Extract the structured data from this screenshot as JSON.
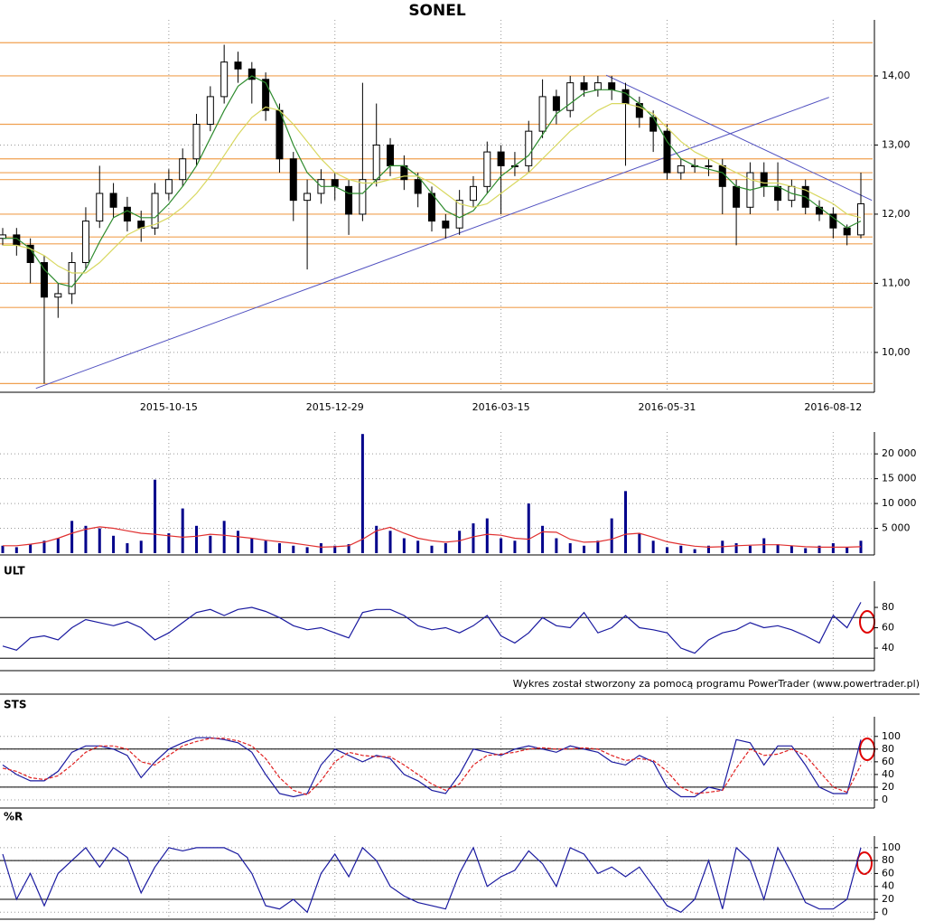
{
  "chart_data": [
    {
      "type": "candlestick",
      "title": "SONEL",
      "categories": [
        null,
        null,
        null,
        null,
        null,
        null,
        null,
        null,
        null,
        null,
        null,
        null,
        "2015-10-15",
        null,
        null,
        null,
        null,
        null,
        null,
        null,
        null,
        null,
        null,
        null,
        "2015-12-29",
        null,
        null,
        null,
        null,
        null,
        null,
        null,
        null,
        null,
        null,
        null,
        "2016-03-15",
        null,
        null,
        null,
        null,
        null,
        null,
        null,
        null,
        null,
        null,
        null,
        "2016-05-31",
        null,
        null,
        null,
        null,
        null,
        null,
        null,
        null,
        null,
        null,
        null,
        "2016-08-12",
        null,
        null
      ],
      "open": [
        11.65,
        11.7,
        11.55,
        11.3,
        10.8,
        10.85,
        11.3,
        11.9,
        12.3,
        12.1,
        11.9,
        11.8,
        12.3,
        12.5,
        12.8,
        13.3,
        13.7,
        14.2,
        14.1,
        13.95,
        13.5,
        12.8,
        12.2,
        12.3,
        12.5,
        12.4,
        12.0,
        12.5,
        13.0,
        12.7,
        12.5,
        12.3,
        11.9,
        11.8,
        12.2,
        12.4,
        12.9,
        12.7,
        12.7,
        13.2,
        13.7,
        13.5,
        13.9,
        13.8,
        13.9,
        13.8,
        13.6,
        13.4,
        13.2,
        12.6,
        12.7,
        12.7,
        12.7,
        12.4,
        12.1,
        12.6,
        12.4,
        12.2,
        12.4,
        12.1,
        12.0,
        11.8,
        11.7
      ],
      "high": [
        11.8,
        11.8,
        11.65,
        11.4,
        11.0,
        11.45,
        12.1,
        12.7,
        12.45,
        12.25,
        12.05,
        12.45,
        12.65,
        12.95,
        13.45,
        13.85,
        14.45,
        14.35,
        14.2,
        14.05,
        13.6,
        12.9,
        12.5,
        12.65,
        12.6,
        12.5,
        13.9,
        13.6,
        13.1,
        12.85,
        12.6,
        12.4,
        12.0,
        12.35,
        12.55,
        13.05,
        13.0,
        12.9,
        13.35,
        13.95,
        13.8,
        14.0,
        14.0,
        14.0,
        14.0,
        13.9,
        13.7,
        13.5,
        13.3,
        12.8,
        12.8,
        12.8,
        12.8,
        12.5,
        12.75,
        12.75,
        12.75,
        12.5,
        12.5,
        12.2,
        12.1,
        11.85,
        12.6
      ],
      "low": [
        11.55,
        11.4,
        11.0,
        9.55,
        10.5,
        10.7,
        11.2,
        11.8,
        11.95,
        11.75,
        11.6,
        11.7,
        12.2,
        12.4,
        12.7,
        13.2,
        13.6,
        13.9,
        13.6,
        13.35,
        12.6,
        11.9,
        11.2,
        12.15,
        12.2,
        11.7,
        11.9,
        12.4,
        12.55,
        12.35,
        12.1,
        11.75,
        11.65,
        11.7,
        12.1,
        12.3,
        12.0,
        12.55,
        12.6,
        13.1,
        13.3,
        13.4,
        13.7,
        13.7,
        13.65,
        12.7,
        13.25,
        12.9,
        12.5,
        12.5,
        12.6,
        12.55,
        12.0,
        11.55,
        12.0,
        12.25,
        12.05,
        12.1,
        12.0,
        11.9,
        11.65,
        11.55,
        11.65
      ],
      "close": [
        11.7,
        11.55,
        11.3,
        10.8,
        10.85,
        11.3,
        11.9,
        12.3,
        12.1,
        11.9,
        11.8,
        12.3,
        12.5,
        12.8,
        13.3,
        13.7,
        14.2,
        14.1,
        13.95,
        13.5,
        12.8,
        12.2,
        12.3,
        12.5,
        12.4,
        12.0,
        12.5,
        13.0,
        12.7,
        12.5,
        12.3,
        11.9,
        11.8,
        12.2,
        12.4,
        12.9,
        12.7,
        12.7,
        13.2,
        13.7,
        13.5,
        13.9,
        13.8,
        13.9,
        13.8,
        13.6,
        13.4,
        13.2,
        12.6,
        12.7,
        12.7,
        12.7,
        12.4,
        12.1,
        12.6,
        12.4,
        12.2,
        12.4,
        12.1,
        12.0,
        11.8,
        11.7,
        12.15
      ],
      "overlays": [
        {
          "color": "#2e8b2e",
          "values": [
            11.65,
            11.65,
            11.5,
            11.2,
            11.0,
            10.95,
            11.2,
            11.6,
            11.95,
            12.05,
            11.95,
            11.95,
            12.15,
            12.4,
            12.7,
            13.1,
            13.5,
            13.85,
            14.0,
            13.9,
            13.5,
            13.0,
            12.6,
            12.4,
            12.4,
            12.3,
            12.3,
            12.5,
            12.7,
            12.7,
            12.55,
            12.3,
            12.05,
            11.95,
            12.05,
            12.3,
            12.55,
            12.7,
            12.85,
            13.15,
            13.45,
            13.6,
            13.75,
            13.8,
            13.8,
            13.75,
            13.6,
            13.4,
            13.05,
            12.8,
            12.7,
            12.65,
            12.6,
            12.4,
            12.35,
            12.4,
            12.4,
            12.3,
            12.25,
            12.1,
            11.95,
            11.8,
            11.9
          ]
        },
        {
          "color": "#d8d860",
          "values": [
            11.55,
            11.55,
            11.5,
            11.4,
            11.25,
            11.15,
            11.15,
            11.3,
            11.5,
            11.7,
            11.8,
            11.85,
            11.95,
            12.1,
            12.3,
            12.55,
            12.85,
            13.15,
            13.4,
            13.55,
            13.5,
            13.3,
            13.05,
            12.8,
            12.6,
            12.5,
            12.45,
            12.45,
            12.5,
            12.55,
            12.55,
            12.45,
            12.3,
            12.15,
            12.1,
            12.15,
            12.3,
            12.45,
            12.6,
            12.8,
            13.0,
            13.2,
            13.35,
            13.5,
            13.6,
            13.6,
            13.55,
            13.45,
            13.25,
            13.05,
            12.9,
            12.8,
            12.7,
            12.6,
            12.5,
            12.45,
            12.45,
            12.4,
            12.35,
            12.25,
            12.15,
            12.0,
            11.95
          ]
        }
      ],
      "levels": {
        "color": "#f0a050",
        "values": [
          14.48,
          14.0,
          13.3,
          12.8,
          12.6,
          12.5,
          12.0,
          11.67,
          11.57,
          11.0,
          10.65,
          9.55
        ]
      },
      "trendlines": {
        "color": "#5050c0",
        "lines": [
          {
            "x": [
              2.4,
              59.7
            ],
            "y": [
              9.48,
              13.69
            ]
          },
          {
            "x": [
              43.6,
              62.8
            ],
            "y": [
              14.01,
              12.2
            ]
          }
        ]
      },
      "ylim": [
        9.45,
        14.81
      ],
      "yticks": [
        {
          "value": 10,
          "label": "10,00"
        },
        {
          "value": 11,
          "label": "11,00"
        },
        {
          "value": 12,
          "label": "12,00"
        },
        {
          "value": 13,
          "label": "13,00"
        },
        {
          "value": 14,
          "label": "14,00"
        }
      ],
      "grid": true
    },
    {
      "type": "bar",
      "color": "#00008b",
      "values": [
        1500,
        1200,
        1800,
        2500,
        3000,
        6500,
        5500,
        5000,
        3500,
        2000,
        2500,
        14800,
        4000,
        9000,
        5500,
        3500,
        6500,
        4500,
        3000,
        2500,
        2000,
        1500,
        1200,
        2000,
        1500,
        1800,
        24000,
        5500,
        4500,
        3000,
        2500,
        1500,
        2000,
        4500,
        6000,
        7000,
        3000,
        2500,
        10000,
        5500,
        3000,
        2000,
        1500,
        2500,
        7000,
        12500,
        4000,
        2500,
        1200,
        1500,
        800,
        1500,
        2500,
        2000,
        1500,
        3000,
        1800,
        1500,
        1000,
        1500,
        2000,
        1200,
        2500
      ],
      "overlays": [
        {
          "color": "#e03030",
          "values": [
            1500,
            1500,
            1800,
            2200,
            3000,
            4000,
            4800,
            5300,
            5000,
            4500,
            4000,
            3800,
            3500,
            3200,
            3400,
            3800,
            3600,
            3300,
            3000,
            2600,
            2300,
            2000,
            1600,
            1200,
            1300,
            1500,
            2800,
            4500,
            5200,
            4000,
            3000,
            2500,
            2200,
            2500,
            3300,
            3800,
            3600,
            3000,
            2800,
            4300,
            4200,
            2800,
            2200,
            2300,
            2800,
            3800,
            4000,
            3200,
            2300,
            1800,
            1400,
            1200,
            1300,
            1500,
            1600,
            1700,
            1700,
            1500,
            1300,
            1200,
            1200,
            1200,
            1300
          ]
        }
      ],
      "ylim": [
        0,
        24400
      ],
      "yticks": [
        {
          "value": 5000,
          "label": "5 000"
        },
        {
          "value": 10000,
          "label": "10 000"
        },
        {
          "value": 15000,
          "label": "15 000"
        },
        {
          "value": 20000,
          "label": "20 000"
        }
      ],
      "grid": true
    },
    {
      "type": "line",
      "title": "ULT",
      "overlays": [
        {
          "color": "#1a1aa0",
          "values": [
            42,
            38,
            50,
            52,
            48,
            60,
            68,
            65,
            62,
            66,
            60,
            48,
            55,
            65,
            75,
            78,
            72,
            78,
            80,
            76,
            70,
            62,
            58,
            60,
            55,
            50,
            75,
            78,
            78,
            72,
            62,
            58,
            60,
            55,
            62,
            72,
            52,
            45,
            55,
            70,
            62,
            60,
            75,
            55,
            60,
            72,
            60,
            58,
            55,
            40,
            35,
            48,
            55,
            58,
            65,
            60,
            62,
            58,
            52,
            45,
            72,
            60,
            85
          ]
        }
      ],
      "reference_lines": [
        30,
        70
      ],
      "ylim": [
        19.6,
        105.8
      ],
      "yticks": [
        40,
        60,
        80
      ],
      "grid": false
    },
    {
      "type": "line",
      "title": "STS",
      "overlays": [
        {
          "color": "#1a1aa0",
          "values": [
            55,
            40,
            30,
            30,
            45,
            75,
            85,
            85,
            80,
            70,
            35,
            60,
            80,
            90,
            98,
            98,
            95,
            90,
            75,
            40,
            10,
            5,
            10,
            55,
            80,
            70,
            60,
            70,
            65,
            40,
            30,
            15,
            10,
            40,
            80,
            75,
            70,
            80,
            85,
            80,
            75,
            85,
            80,
            75,
            60,
            55,
            70,
            60,
            20,
            5,
            5,
            20,
            15,
            95,
            90,
            55,
            85,
            85,
            55,
            20,
            10,
            10,
            95
          ]
        },
        {
          "color": "#e02020",
          "dashed": true,
          "values": [
            50,
            45,
            35,
            32,
            38,
            55,
            75,
            85,
            85,
            80,
            60,
            55,
            70,
            85,
            92,
            97,
            97,
            93,
            85,
            65,
            35,
            15,
            8,
            30,
            60,
            75,
            70,
            68,
            68,
            55,
            40,
            25,
            15,
            25,
            55,
            70,
            72,
            75,
            80,
            82,
            80,
            80,
            82,
            80,
            70,
            62,
            65,
            62,
            45,
            20,
            10,
            12,
            15,
            50,
            80,
            70,
            72,
            80,
            70,
            45,
            20,
            12,
            55
          ]
        }
      ],
      "reference_lines": [
        20,
        80
      ],
      "ylim": [
        -10,
        131
      ],
      "yticks": [
        0,
        20,
        40,
        60,
        80,
        100
      ],
      "grid": true
    },
    {
      "type": "line",
      "title": "%R",
      "overlays": [
        {
          "color": "#1a1aa0",
          "values": [
            90,
            20,
            60,
            10,
            60,
            80,
            100,
            70,
            100,
            85,
            30,
            70,
            100,
            95,
            100,
            100,
            100,
            90,
            60,
            10,
            5,
            20,
            0,
            60,
            90,
            55,
            100,
            80,
            40,
            25,
            15,
            10,
            5,
            60,
            100,
            40,
            55,
            65,
            95,
            75,
            40,
            100,
            90,
            60,
            70,
            55,
            70,
            40,
            10,
            0,
            20,
            80,
            5,
            100,
            80,
            20,
            100,
            60,
            15,
            5,
            5,
            20,
            100
          ]
        }
      ],
      "reference_lines": [
        20,
        80
      ],
      "ylim": [
        -8,
        118
      ],
      "yticks": [
        0,
        20,
        40,
        60,
        80,
        100
      ],
      "grid": true
    }
  ],
  "note": "Wykres został stworzony za pomocą programu PowerTrader (www.powertrader.pl)"
}
